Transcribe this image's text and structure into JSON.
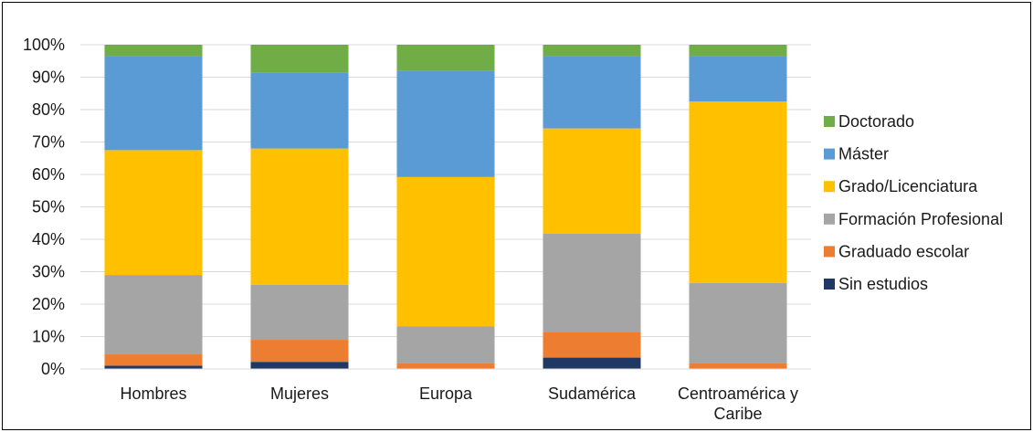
{
  "chart_data": {
    "type": "bar",
    "stacked": true,
    "normalized": true,
    "title": "",
    "xlabel": "",
    "ylabel": "",
    "ylim": [
      0,
      100
    ],
    "y_ticks": [
      "0%",
      "10%",
      "20%",
      "30%",
      "40%",
      "50%",
      "60%",
      "70%",
      "80%",
      "90%",
      "100%"
    ],
    "grid": true,
    "legend_position": "right",
    "categories": [
      [
        "Hombres"
      ],
      [
        "Mujeres"
      ],
      [
        "Europa"
      ],
      [
        "Sudamérica"
      ],
      [
        "Centroamérica y",
        "Caribe"
      ]
    ],
    "series": [
      {
        "name": "Sin estudios",
        "color": "#1f3864",
        "values": [
          1.0,
          2.2,
          0.0,
          3.5,
          0.0
        ]
      },
      {
        "name": "Graduado escolar",
        "color": "#ed7d31",
        "values": [
          3.5,
          6.8,
          1.8,
          8.0,
          1.8
        ]
      },
      {
        "name": "Formación Profesional",
        "color": "#a5a5a5",
        "values": [
          24.5,
          17.0,
          11.4,
          30.2,
          24.7
        ]
      },
      {
        "name": "Grado/Licenciatura",
        "color": "#ffc000",
        "values": [
          38.5,
          42.0,
          46.0,
          32.5,
          56.0
        ]
      },
      {
        "name": "Máster",
        "color": "#5b9bd5",
        "values": [
          29.0,
          23.5,
          32.8,
          22.3,
          14.0
        ]
      },
      {
        "name": "Doctorado",
        "color": "#70ad47",
        "values": [
          3.5,
          8.5,
          8.0,
          3.5,
          3.5
        ]
      }
    ],
    "legend_order": [
      "Doctorado",
      "Máster",
      "Grado/Licenciatura",
      "Formación Profesional",
      "Graduado escolar",
      "Sin estudios"
    ]
  }
}
